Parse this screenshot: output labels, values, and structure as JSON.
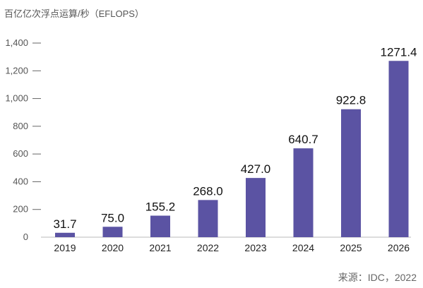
{
  "chart_data": {
    "type": "bar",
    "ylabel": "百亿亿次浮点运算/秒（EFLOPS）",
    "categories": [
      "2019",
      "2020",
      "2021",
      "2022",
      "2023",
      "2024",
      "2025",
      "2026"
    ],
    "values": [
      31.7,
      75.0,
      155.2,
      268.0,
      427.0,
      640.7,
      922.8,
      1271.4
    ],
    "data_labels": [
      "31.7",
      "75.0",
      "155.2",
      "268.0",
      "427.0",
      "640.7",
      "922.8",
      "1271.4"
    ],
    "yticks": [
      0,
      200,
      400,
      600,
      800,
      1000,
      1200,
      1400
    ],
    "ytick_labels": [
      "0",
      "200",
      "400",
      "600",
      "800",
      "1,000",
      "1,200",
      "1,400"
    ],
    "ylim": [
      0,
      1400
    ],
    "grid": false,
    "bar_color": "#5B53A3",
    "source": "来源：IDC，2022"
  }
}
